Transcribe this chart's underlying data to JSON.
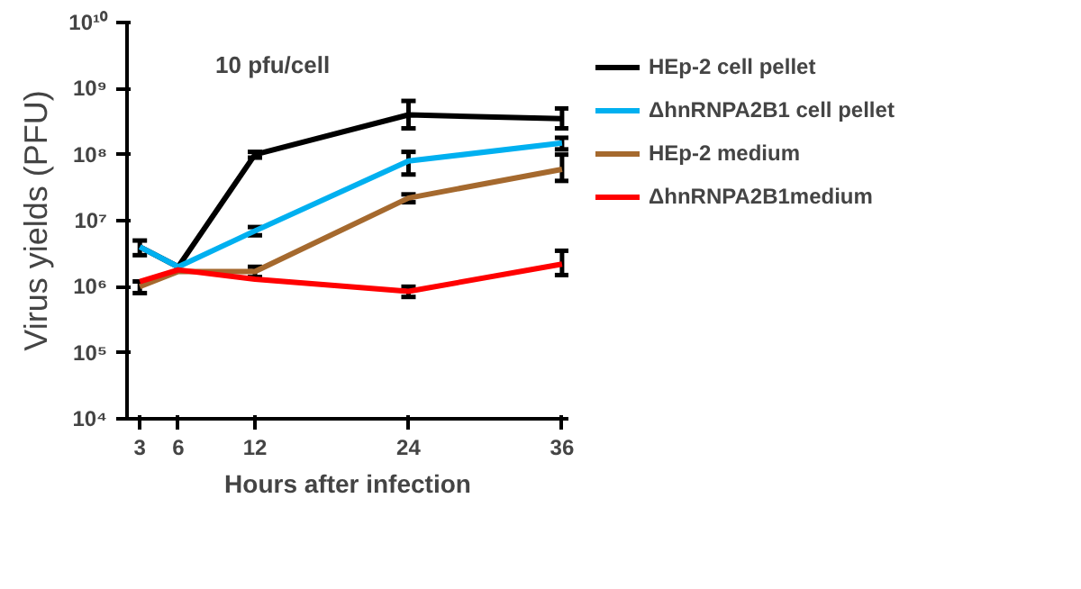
{
  "chart_data": {
    "type": "line",
    "xlabel": "Hours after infection",
    "ylabel": "Virus yields (PFU)",
    "annotations": [
      "10 pfu/cell"
    ],
    "x": [
      3,
      6,
      12,
      24,
      36
    ],
    "xlim": [
      2,
      36.5
    ],
    "xticks": [
      3,
      6,
      12,
      24,
      36
    ],
    "ylim": [
      10000,
      10000000000
    ],
    "log": true,
    "yticks": [
      {
        "value": 10000,
        "label": "10⁴"
      },
      {
        "value": 100000,
        "label": "10⁵"
      },
      {
        "value": 1000000,
        "label": "10⁶"
      },
      {
        "value": 10000000,
        "label": "10⁷"
      },
      {
        "value": 100000000,
        "label": "10⁸"
      },
      {
        "value": 1000000000,
        "label": "10⁹"
      },
      {
        "value": 10000000000,
        "label": "10¹⁰"
      }
    ],
    "grid": false,
    "legend": "right",
    "marker": "none",
    "line_style": "solid",
    "series": [
      {
        "name": "HEp-2 cell pellet",
        "color": "#000000",
        "values": [
          4000000,
          2000000,
          100000000,
          400000000,
          350000000
        ],
        "errors": [
          [
            3000000,
            5000000
          ],
          null,
          [
            90000000,
            110000000
          ],
          [
            250000000,
            650000000
          ],
          [
            250000000,
            500000000
          ]
        ]
      },
      {
        "name": "ΔhnRNPA2B1 cell pellet",
        "color": "#00b0f0",
        "values": [
          4000000,
          2000000,
          7000000,
          80000000,
          150000000
        ],
        "errors": [
          null,
          null,
          [
            6000000,
            8000000
          ],
          [
            50000000,
            110000000
          ],
          [
            120000000,
            180000000
          ]
        ]
      },
      {
        "name": "HEp-2 medium",
        "color": "#a5692e",
        "values": [
          1000000,
          1700000,
          1700000,
          22000000,
          60000000
        ],
        "errors": [
          [
            800000,
            1200000
          ],
          null,
          [
            1400000,
            2000000
          ],
          [
            19000000,
            25000000
          ],
          [
            40000000,
            100000000
          ]
        ]
      },
      {
        "name": "ΔhnRNPA2B1medium",
        "color": "#ff0000",
        "values": [
          1200000,
          1800000,
          1300000,
          850000,
          2200000
        ],
        "errors": [
          null,
          null,
          null,
          [
            700000,
            1000000
          ],
          [
            1500000,
            3500000
          ]
        ]
      }
    ]
  }
}
